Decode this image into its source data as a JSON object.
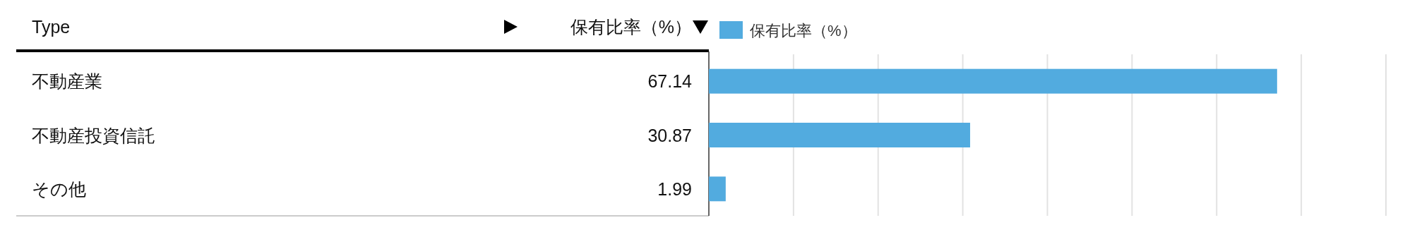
{
  "chart_data": {
    "type": "bar",
    "orientation": "horizontal",
    "ylabel": "Type",
    "xlabel": "保有比率（%）",
    "categories": [
      "不動産業",
      "不動産投資信託",
      "その他"
    ],
    "series": [
      {
        "name": "保有比率（%）",
        "color": "#52abdf",
        "values": [
          67.14,
          30.87,
          1.99
        ]
      }
    ],
    "xlim": [
      0,
      80
    ],
    "xticks": [
      {
        "value": 0,
        "label": null
      },
      {
        "value": 10,
        "label": null
      },
      {
        "value": 20,
        "label": null
      },
      {
        "value": 30,
        "label": null
      },
      {
        "value": 40,
        "label": null
      },
      {
        "value": 50,
        "label": null
      },
      {
        "value": 60,
        "label": null
      },
      {
        "value": 70,
        "label": null
      },
      {
        "value": 80,
        "label": null
      }
    ],
    "tick_labels": "y",
    "grid": "x",
    "legend": "top left",
    "data_labels": true
  }
}
